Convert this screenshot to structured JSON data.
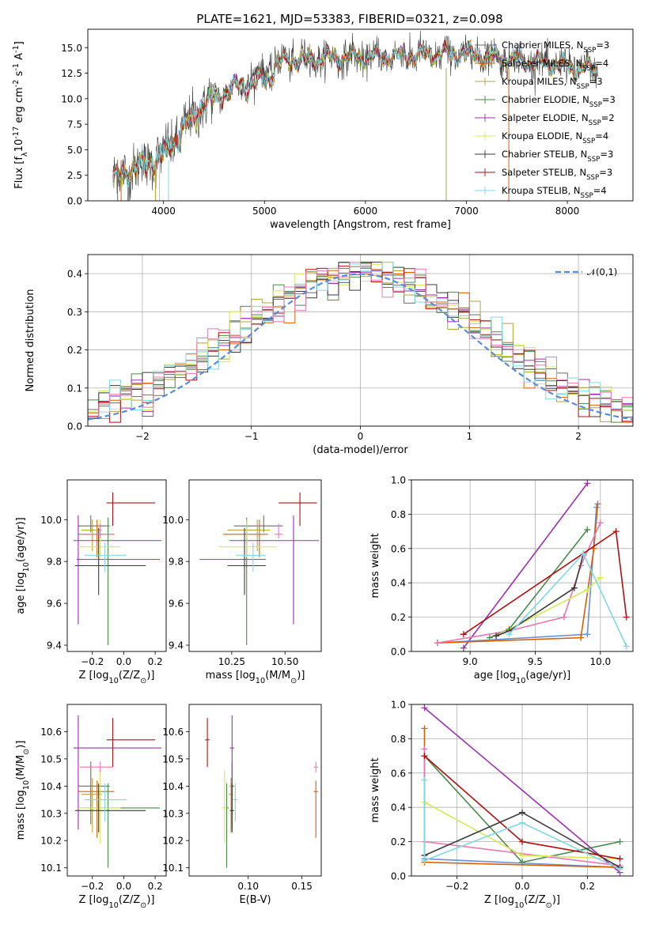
{
  "figure": {
    "title": "PLATE=1621, MJD=53383, FIBERID=0321, z=0.098"
  },
  "models": [
    {
      "name": "Chabrier MILES",
      "nssp": 3,
      "color": "#6b6b6b",
      "legend": "Chabrier MILES, N$_{SSP}$=3",
      "age": 9.97,
      "age_err": [
        0.03,
        0.05
      ],
      "Z": -0.21,
      "Z_err": [
        0.08,
        0.12
      ],
      "mass": 10.4,
      "mass_err": [
        0.14,
        0.09
      ],
      "ebv": 0.085
    },
    {
      "name": "Salpeter MILES",
      "nssp": 4,
      "color": "#d95f02",
      "legend": "Salpeter MILES, N$_{SSP}$=4",
      "age": 9.93,
      "age_err": [
        0.11,
        0.07
      ],
      "Z": -0.17,
      "Z_err": [
        0.12,
        0.11
      ],
      "mass": 10.38,
      "mass_err": [
        0.17,
        0.04
      ],
      "ebv": 0.163
    },
    {
      "name": "Kroupa MILES",
      "nssp": 3,
      "color": "#b5a33a",
      "legend": "Kroupa MILES, N$_{SSP}$=3",
      "age": 9.95,
      "age_err": [
        0.1,
        0.05
      ],
      "Z": -0.2,
      "Z_err": [
        0.07,
        0.06
      ],
      "mass": 10.37,
      "mass_err": [
        0.14,
        0.06
      ],
      "ebv": 0.084
    },
    {
      "name": "Chabrier ELODIE",
      "nssp": 3,
      "color": "#4a8a4a",
      "legend": "Chabrier ELODIE, N$_{SSP}$=3",
      "age": 9.81,
      "age_err": [
        0.41,
        0.2
      ],
      "Z": -0.1,
      "Z_err": [
        0.2,
        0.33
      ],
      "mass": 10.32,
      "mass_err": [
        0.22,
        0.09
      ],
      "ebv": 0.08
    },
    {
      "name": "Salpeter ELODIE",
      "nssp": 2,
      "color": "#9b30b0",
      "legend": "Salpeter ELODIE, N$_{SSP}$=2",
      "age": 9.9,
      "age_err": [
        0.4,
        0.12
      ],
      "Z": -0.29,
      "Z_err": [
        0.03,
        0.53
      ],
      "mass": 10.54,
      "mass_err": [
        0.3,
        0.12
      ],
      "ebv": 0.085
    },
    {
      "name": "Kroupa ELODIE",
      "nssp": 4,
      "color": "#d4e85a",
      "legend": "Kroupa ELODIE, N$_{SSP}$=4",
      "age": 9.87,
      "age_err": [
        0.05,
        0.13
      ],
      "Z": -0.15,
      "Z_err": [
        0.15,
        0.13
      ],
      "mass": 10.32,
      "mass_err": [
        0.13,
        0.14
      ],
      "ebv": 0.078
    },
    {
      "name": "Chabrier STELIB",
      "nssp": 3,
      "color": "#3a3a3a",
      "legend": "Chabrier STELIB, N$_{SSP}$=3",
      "age": 9.78,
      "age_err": [
        0.14,
        0.18
      ],
      "Z": -0.16,
      "Z_err": [
        0.15,
        0.3
      ],
      "mass": 10.31,
      "mass_err": [
        0.08,
        0.1
      ],
      "ebv": 0.085
    },
    {
      "name": "Salpeter STELIB",
      "nssp": 3,
      "color": "#b01010",
      "legend": "Salpeter STELIB, N$_{SSP}$=3",
      "age": 10.08,
      "age_err": [
        0.11,
        0.05
      ],
      "Z": -0.07,
      "Z_err": [
        0.04,
        0.27
      ],
      "mass": 10.57,
      "mass_err": [
        0.1,
        0.08
      ],
      "ebv": 0.062
    },
    {
      "name": "Kroupa STELIB",
      "nssp": 4,
      "color": "#80d8e0",
      "legend": "Kroupa STELIB, N$_{SSP}$=4",
      "age": 9.83,
      "age_err": [
        0.08,
        0.06
      ],
      "Z": -0.12,
      "Z_err": [
        0.13,
        0.14
      ],
      "mass": 10.35,
      "mass_err": [
        0.08,
        0.06
      ],
      "ebv": 0.088
    }
  ],
  "extra_pink": {
    "color": "#e879b0",
    "age": 9.93,
    "age_err": [
      0.02,
      0.05
    ],
    "Z": -0.15,
    "Z_err": [
      0.13,
      0.08
    ],
    "mass": 10.47,
    "mass_err": [
      0.02,
      0.02
    ],
    "ebv": 0.163
  },
  "chart_data": [
    {
      "type": "line",
      "title": "PLATE=1621, MJD=53383, FIBERID=0321, z=0.098",
      "xlabel": "wavelength [Angstrom, rest frame]",
      "ylabel": "Flux [f$_\\lambda$10$^{-17}$ erg cm$^{-2}$ s$^{-1}$ A$^{-1}$]",
      "xlim": [
        3250,
        8650
      ],
      "ylim": [
        0,
        16.8
      ],
      "xticks": [
        4000,
        5000,
        6000,
        7000,
        8000
      ],
      "yticks": [
        0.0,
        2.5,
        5.0,
        7.5,
        10.0,
        12.5,
        15.0
      ],
      "spectrum_wavelength_range": [
        3500,
        8300
      ],
      "legend": "top-right"
    },
    {
      "type": "histogram",
      "xlabel": "(data-model)/error",
      "ylabel": "Normed distribution",
      "xlim": [
        -2.5,
        2.5
      ],
      "ylim": [
        0,
        0.45
      ],
      "xticks": [
        -2,
        -1,
        0,
        1,
        2
      ],
      "yticks": [
        0.0,
        0.1,
        0.2,
        0.3,
        0.4
      ],
      "reference": "$\\mathcal{N}(0,1)$",
      "grid": true
    },
    {
      "type": "scatter",
      "xlabel": "Z [log$_{10}$(Z/Z$_\\odot$)]",
      "ylabel": "age  [log$_{10}$(age/yr)]",
      "xlim": [
        -0.36,
        0.27
      ],
      "ylim": [
        9.37,
        10.19
      ],
      "xticks": [
        -0.2,
        0.0,
        0.2
      ],
      "yticks": [
        9.4,
        9.6,
        9.8,
        10.0
      ]
    },
    {
      "type": "scatter",
      "xlabel": "mass [log$_{10}$(M/M$_\\odot$)]",
      "ylabel": "",
      "xlim": [
        10.05,
        10.67
      ],
      "ylim": [
        9.37,
        10.19
      ],
      "xticks": [
        10.25,
        10.5
      ],
      "yticks": [
        9.4,
        9.6,
        9.8,
        10.0
      ]
    },
    {
      "type": "line",
      "xlabel": "age  [log$_{10}$(age/yr)]",
      "ylabel": "mass weight",
      "xlim": [
        8.55,
        10.25
      ],
      "ylim": [
        0,
        1.0
      ],
      "xticks": [
        9.0,
        9.5,
        10.0
      ],
      "yticks": [
        0.0,
        0.2,
        0.4,
        0.6,
        0.8,
        1.0
      ],
      "grid": true
    },
    {
      "type": "scatter",
      "xlabel": "Z [log$_{10}$(Z/Z$_\\odot$)]",
      "ylabel": "mass [log$_{10}$(M/M$_\\odot$)]",
      "xlim": [
        -0.36,
        0.27
      ],
      "ylim": [
        10.07,
        10.7
      ],
      "xticks": [
        -0.2,
        0.0,
        0.2
      ],
      "yticks": [
        10.1,
        10.2,
        10.3,
        10.4,
        10.5,
        10.6
      ]
    },
    {
      "type": "scatter",
      "xlabel": "E(B-V)",
      "ylabel": "",
      "xlim": [
        0.045,
        0.168
      ],
      "ylim": [
        10.07,
        10.7
      ],
      "xticks": [
        0.1,
        0.15
      ],
      "yticks": [
        10.1,
        10.2,
        10.3,
        10.4,
        10.5,
        10.6
      ]
    },
    {
      "type": "line",
      "xlabel": "Z [log$_{10}$(Z/Z$_\\odot$)]",
      "ylabel": "mass weight",
      "xlim": [
        -0.34,
        0.34
      ],
      "ylim": [
        0,
        1.0
      ],
      "xticks": [
        -0.2,
        0.0,
        0.2
      ],
      "yticks": [
        0.0,
        0.2,
        0.4,
        0.6,
        0.8,
        1.0
      ],
      "grid": true
    }
  ],
  "weights_age": [
    {
      "color": "#4a8a4a",
      "pts": [
        [
          9.15,
          0.08
        ],
        [
          9.3,
          0.13
        ],
        [
          9.9,
          0.71
        ]
      ]
    },
    {
      "color": "#9b30b0",
      "pts": [
        [
          8.95,
          0.02
        ],
        [
          9.9,
          0.98
        ]
      ]
    },
    {
      "color": "#6a8fd8",
      "pts": [
        [
          8.75,
          0.05
        ],
        [
          9.9,
          0.1
        ],
        [
          9.97,
          0.84
        ]
      ]
    },
    {
      "color": "#d95f02",
      "pts": [
        [
          8.75,
          0.05
        ],
        [
          9.85,
          0.08
        ],
        [
          9.95,
          0.6
        ],
        [
          9.98,
          0.86
        ]
      ]
    },
    {
      "color": "#e879b0",
      "pts": [
        [
          8.75,
          0.05
        ],
        [
          9.3,
          0.12
        ],
        [
          9.72,
          0.2
        ],
        [
          9.85,
          0.5
        ],
        [
          10.0,
          0.75
        ]
      ]
    },
    {
      "color": "#d4e85a",
      "pts": [
        [
          9.2,
          0.09
        ],
        [
          9.9,
          0.36
        ],
        [
          10.0,
          0.43
        ]
      ]
    },
    {
      "color": "#3a3a3a",
      "pts": [
        [
          9.2,
          0.09
        ],
        [
          9.3,
          0.12
        ],
        [
          9.8,
          0.37
        ],
        [
          9.87,
          0.57
        ]
      ]
    },
    {
      "color": "#b01010",
      "pts": [
        [
          8.95,
          0.1
        ],
        [
          10.12,
          0.7
        ],
        [
          10.2,
          0.2
        ]
      ]
    },
    {
      "color": "#80d8e0",
      "pts": [
        [
          9.3,
          0.1
        ],
        [
          9.87,
          0.57
        ],
        [
          10.2,
          0.03
        ]
      ]
    }
  ],
  "weights_Z": [
    {
      "color": "#4a8a4a",
      "pts": [
        [
          -0.3,
          0.7
        ],
        [
          0.0,
          0.08
        ],
        [
          0.3,
          0.2
        ]
      ]
    },
    {
      "color": "#9b30b0",
      "pts": [
        [
          -0.3,
          0.98
        ],
        [
          0.3,
          0.02
        ]
      ]
    },
    {
      "color": "#6a8fd8",
      "pts": [
        [
          -0.3,
          0.1
        ],
        [
          0.3,
          0.05
        ]
      ]
    },
    {
      "color": "#d95f02",
      "pts": [
        [
          -0.3,
          0.86
        ],
        [
          -0.3,
          0.08
        ],
        [
          0.3,
          0.05
        ]
      ]
    },
    {
      "color": "#e879b0",
      "pts": [
        [
          -0.3,
          0.74
        ],
        [
          -0.3,
          0.2
        ],
        [
          0.3,
          0.06
        ]
      ]
    },
    {
      "color": "#d4e85a",
      "pts": [
        [
          -0.3,
          0.43
        ],
        [
          0.0,
          0.12
        ],
        [
          0.3,
          0.1
        ]
      ]
    },
    {
      "color": "#3a3a3a",
      "pts": [
        [
          -0.3,
          0.12
        ],
        [
          0.0,
          0.37
        ],
        [
          0.3,
          0.05
        ]
      ]
    },
    {
      "color": "#b01010",
      "pts": [
        [
          -0.3,
          0.7
        ],
        [
          0.0,
          0.2
        ],
        [
          0.3,
          0.1
        ]
      ]
    },
    {
      "color": "#80d8e0",
      "pts": [
        [
          -0.3,
          0.56
        ],
        [
          -0.3,
          0.09
        ],
        [
          0.0,
          0.31
        ],
        [
          0.3,
          0.04
        ]
      ]
    }
  ]
}
